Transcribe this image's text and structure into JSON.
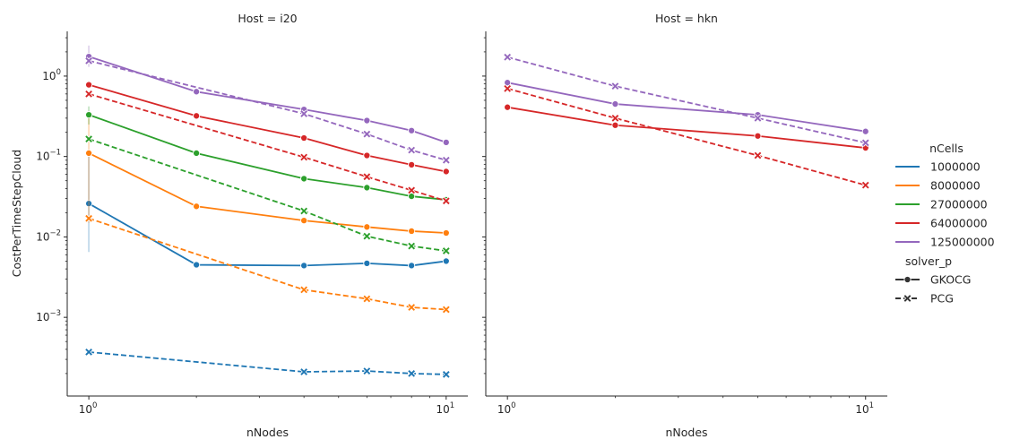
{
  "chart_data": {
    "type": "line",
    "x_scale": "log",
    "y_scale": "log",
    "xlabel": "nNodes",
    "ylabel": "CostPerTimeStepCloud",
    "xlim": [
      0.87,
      11.5
    ],
    "ylim": [
      0.000105,
      3.6
    ],
    "x_ticks": [
      {
        "value": 1,
        "label": "10",
        "exp": "0"
      },
      {
        "value": 10,
        "label": "10",
        "exp": "1"
      }
    ],
    "y_ticks": [
      {
        "value": 0.001,
        "label": "10",
        "exp": "−3"
      },
      {
        "value": 0.01,
        "label": "10",
        "exp": "−2"
      },
      {
        "value": 0.1,
        "label": "10",
        "exp": "−1"
      },
      {
        "value": 1,
        "label": "10",
        "exp": "0"
      }
    ],
    "x_minor_ticks": [
      2,
      3,
      4,
      5,
      6,
      7,
      8,
      9
    ],
    "legend": {
      "hue_title": "nCells",
      "hue_entries": [
        {
          "label": "1000000",
          "color": "#1f77b4"
        },
        {
          "label": "8000000",
          "color": "#ff7f0e"
        },
        {
          "label": "27000000",
          "color": "#2ca02c"
        },
        {
          "label": "64000000",
          "color": "#d62728"
        },
        {
          "label": "125000000",
          "color": "#9467bd"
        }
      ],
      "style_title": "solver_p",
      "style_entries": [
        {
          "label": "GKOCG",
          "dash": "solid",
          "marker": "circle"
        },
        {
          "label": "PCG",
          "dash": "dashed",
          "marker": "x"
        }
      ],
      "placement": "right"
    },
    "panels": [
      {
        "title": "Host = i20",
        "series": [
          {
            "ncells": "1000000",
            "solver": "GKOCG",
            "color": "#1f77b4",
            "x": [
              1,
              2,
              4,
              6,
              8,
              10
            ],
            "y": [
              0.026,
              0.0045,
              0.0044,
              0.0047,
              0.0044,
              0.005
            ],
            "ci_at_first": [
              0.0065,
              0.1
            ]
          },
          {
            "ncells": "8000000",
            "solver": "GKOCG",
            "color": "#ff7f0e",
            "x": [
              1,
              2,
              4,
              6,
              8,
              10
            ],
            "y": [
              0.11,
              0.024,
              0.016,
              0.0133,
              0.0118,
              0.0112
            ],
            "ci_at_first": [
              0.015,
              0.3
            ]
          },
          {
            "ncells": "27000000",
            "solver": "GKOCG",
            "color": "#2ca02c",
            "x": [
              1,
              2,
              4,
              6,
              8,
              10
            ],
            "y": [
              0.33,
              0.11,
              0.053,
              0.041,
              0.032,
              0.029
            ],
            "ci_at_first": [
              0.25,
              0.42
            ]
          },
          {
            "ncells": "64000000",
            "solver": "GKOCG",
            "color": "#d62728",
            "x": [
              1,
              2,
              4,
              6,
              8,
              10
            ],
            "y": [
              0.78,
              0.32,
              0.17,
              0.103,
              0.079,
              0.065
            ],
            "ci_at_first": [
              0.7,
              0.87
            ]
          },
          {
            "ncells": "125000000",
            "solver": "GKOCG",
            "color": "#9467bd",
            "x": [
              1,
              2,
              4,
              6,
              8,
              10
            ],
            "y": [
              1.75,
              0.64,
              0.385,
              0.28,
              0.21,
              0.15
            ],
            "ci_at_first": [
              1.3,
              2.4
            ]
          },
          {
            "ncells": "1000000",
            "solver": "PCG",
            "color": "#1f77b4",
            "x": [
              1,
              4,
              6,
              8,
              10
            ],
            "y": [
              0.00037,
              0.00021,
              0.000215,
              0.0002,
              0.000195
            ]
          },
          {
            "ncells": "8000000",
            "solver": "PCG",
            "color": "#ff7f0e",
            "x": [
              1,
              4,
              6,
              8,
              10
            ],
            "y": [
              0.017,
              0.0022,
              0.0017,
              0.00133,
              0.00125
            ]
          },
          {
            "ncells": "27000000",
            "solver": "PCG",
            "color": "#2ca02c",
            "x": [
              1,
              4,
              6,
              8,
              10
            ],
            "y": [
              0.165,
              0.021,
              0.0102,
              0.0077,
              0.0067
            ]
          },
          {
            "ncells": "64000000",
            "solver": "PCG",
            "color": "#d62728",
            "x": [
              1,
              4,
              6,
              8,
              10
            ],
            "y": [
              0.6,
              0.098,
              0.056,
              0.038,
              0.028
            ]
          },
          {
            "ncells": "125000000",
            "solver": "PCG",
            "color": "#9467bd",
            "x": [
              1,
              4,
              6,
              8,
              10
            ],
            "y": [
              1.55,
              0.34,
              0.19,
              0.12,
              0.09
            ]
          }
        ]
      },
      {
        "title": "Host = hkn",
        "series": [
          {
            "ncells": "64000000",
            "solver": "GKOCG",
            "color": "#d62728",
            "x": [
              1,
              2,
              5,
              10
            ],
            "y": [
              0.41,
              0.245,
              0.18,
              0.128
            ]
          },
          {
            "ncells": "125000000",
            "solver": "GKOCG",
            "color": "#9467bd",
            "x": [
              1,
              2,
              5,
              10
            ],
            "y": [
              0.83,
              0.45,
              0.33,
              0.205
            ]
          },
          {
            "ncells": "64000000",
            "solver": "PCG",
            "color": "#d62728",
            "x": [
              1,
              2,
              5,
              10
            ],
            "y": [
              0.7,
              0.3,
              0.103,
              0.044
            ]
          },
          {
            "ncells": "125000000",
            "solver": "PCG",
            "color": "#9467bd",
            "x": [
              1,
              2,
              5,
              10
            ],
            "y": [
              1.72,
              0.75,
              0.3,
              0.148
            ]
          }
        ]
      }
    ]
  }
}
